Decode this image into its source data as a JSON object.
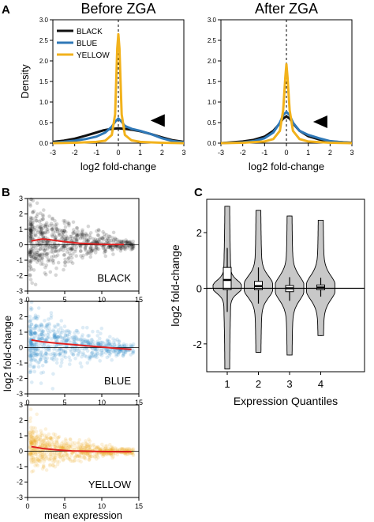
{
  "panels": {
    "a": "A",
    "b": "B",
    "c": "C"
  },
  "chart_data": [
    {
      "type": "line",
      "title": "Before ZGA",
      "xlabel": "log2 fold-change",
      "ylabel": "Density",
      "xlim": [
        -3,
        3
      ],
      "ylim": [
        0,
        3.0
      ],
      "xticks": [
        "-3",
        "-2",
        "-1",
        "0",
        "1",
        "2",
        "3"
      ],
      "yticks": [
        "0.0",
        "0.5",
        "1.0",
        "1.5",
        "2.0",
        "2.5",
        "3.0"
      ],
      "legend": {
        "position": "top-left"
      },
      "annotation": "arrowhead near x=1.8",
      "series": [
        {
          "name": "BLACK",
          "color": "#111111",
          "x": [
            -3,
            -2.5,
            -2,
            -1.5,
            -1,
            -0.7,
            -0.4,
            -0.2,
            0,
            0.2,
            0.4,
            0.7,
            1,
            1.5,
            2,
            2.5,
            3
          ],
          "y": [
            0.03,
            0.06,
            0.11,
            0.18,
            0.26,
            0.31,
            0.34,
            0.35,
            0.36,
            0.35,
            0.34,
            0.32,
            0.29,
            0.22,
            0.14,
            0.07,
            0.03
          ]
        },
        {
          "name": "BLUE",
          "color": "#2f78b7",
          "x": [
            -3,
            -2.5,
            -2,
            -1.5,
            -1,
            -0.6,
            -0.3,
            -0.15,
            0,
            0.15,
            0.3,
            0.6,
            1,
            1.5,
            2,
            2.5,
            3
          ],
          "y": [
            0.01,
            0.03,
            0.06,
            0.1,
            0.16,
            0.26,
            0.4,
            0.52,
            0.6,
            0.52,
            0.42,
            0.35,
            0.3,
            0.22,
            0.12,
            0.05,
            0.02
          ]
        },
        {
          "name": "YELLOW",
          "color": "#f2b21c",
          "x": [
            -3,
            -2,
            -1,
            -0.6,
            -0.3,
            -0.15,
            -0.05,
            0,
            0.05,
            0.15,
            0.3,
            0.6,
            1,
            1.5,
            2,
            3
          ],
          "y": [
            0.0,
            0.01,
            0.03,
            0.06,
            0.2,
            0.7,
            2.3,
            2.65,
            2.3,
            0.7,
            0.2,
            0.07,
            0.03,
            0.02,
            0.01,
            0.0
          ]
        }
      ]
    },
    {
      "type": "line",
      "title": "After ZGA",
      "xlabel": "log2 fold-change",
      "xlim": [
        -3,
        3
      ],
      "ylim": [
        0,
        3.0
      ],
      "xticks": [
        "-3",
        "-2",
        "-1",
        "0",
        "1",
        "2",
        "3"
      ],
      "yticks": [
        "0.0",
        "0.5",
        "1.0",
        "1.5",
        "2.0",
        "2.5",
        "3.0"
      ],
      "annotation": "arrowhead near x=1.6",
      "series": [
        {
          "name": "BLACK",
          "color": "#111111",
          "x": [
            -3,
            -2,
            -1.5,
            -1,
            -0.6,
            -0.3,
            -0.15,
            0,
            0.15,
            0.3,
            0.6,
            1,
            1.5,
            2,
            3
          ],
          "y": [
            0.0,
            0.04,
            0.08,
            0.16,
            0.3,
            0.48,
            0.6,
            0.65,
            0.6,
            0.48,
            0.3,
            0.17,
            0.09,
            0.04,
            0.01
          ]
        },
        {
          "name": "BLUE",
          "color": "#2f78b7",
          "x": [
            -3,
            -2,
            -1.5,
            -1,
            -0.6,
            -0.3,
            -0.15,
            0,
            0.15,
            0.3,
            0.6,
            1,
            1.5,
            2,
            3
          ],
          "y": [
            0.0,
            0.02,
            0.05,
            0.12,
            0.26,
            0.5,
            0.68,
            0.76,
            0.68,
            0.5,
            0.3,
            0.2,
            0.12,
            0.05,
            0.0
          ]
        },
        {
          "name": "YELLOW",
          "color": "#f2b21c",
          "x": [
            -3,
            -2,
            -1,
            -0.6,
            -0.3,
            -0.15,
            -0.05,
            0,
            0.05,
            0.15,
            0.3,
            0.6,
            1,
            2,
            3
          ],
          "y": [
            0.0,
            0.01,
            0.04,
            0.1,
            0.3,
            0.8,
            1.6,
            1.92,
            1.6,
            0.8,
            0.3,
            0.1,
            0.04,
            0.01,
            0.0
          ]
        }
      ]
    },
    {
      "type": "scatter",
      "label": "BLACK",
      "color": "#000000",
      "xlim": [
        0,
        15
      ],
      "ylim": [
        -3,
        3
      ],
      "xticks": [
        "0",
        "5",
        "10",
        "15"
      ],
      "yticks": [
        "-3",
        "-2",
        "-1",
        "0",
        "1",
        "2",
        "3"
      ],
      "ylabel": "log2 fold-change",
      "trend": {
        "x": [
          0.5,
          2,
          3,
          5,
          7,
          9,
          11,
          13
        ],
        "y": [
          0.25,
          0.38,
          0.33,
          0.2,
          0.1,
          0.05,
          0.02,
          0.02
        ]
      },
      "spread": {
        "x": [
          0.5,
          3,
          6,
          9,
          12,
          14
        ],
        "sd": [
          1.2,
          0.95,
          0.7,
          0.45,
          0.25,
          0.15
        ]
      }
    },
    {
      "type": "scatter",
      "label": "BLUE",
      "color": "#2b86c8",
      "xlim": [
        0,
        15
      ],
      "ylim": [
        -3,
        3
      ],
      "xticks": [
        "0",
        "5",
        "10",
        "15"
      ],
      "yticks": [
        "-3",
        "-2",
        "-1",
        "0",
        "1",
        "2",
        "3"
      ],
      "trend": {
        "x": [
          0.5,
          2,
          4,
          6,
          8,
          10,
          12,
          14
        ],
        "y": [
          0.5,
          0.38,
          0.28,
          0.2,
          0.12,
          0.04,
          -0.05,
          -0.12
        ]
      },
      "spread": {
        "x": [
          0.5,
          3,
          6,
          9,
          12,
          14
        ],
        "sd": [
          1.0,
          0.85,
          0.6,
          0.4,
          0.25,
          0.15
        ]
      }
    },
    {
      "type": "scatter",
      "label": "YELLOW",
      "color": "#eda51c",
      "xlim": [
        0,
        15
      ],
      "ylim": [
        -3,
        3
      ],
      "xticks": [
        "0",
        "5",
        "10",
        "15"
      ],
      "yticks": [
        "-3",
        "-2",
        "-1",
        "0",
        "1",
        "2",
        "3"
      ],
      "xlabel": "mean expression",
      "trend": {
        "x": [
          0.5,
          2,
          4,
          6,
          8,
          10,
          12,
          14
        ],
        "y": [
          0.3,
          0.18,
          0.08,
          0.02,
          0.0,
          -0.02,
          -0.03,
          -0.03
        ]
      },
      "spread": {
        "x": [
          0.5,
          3,
          6,
          9,
          12,
          14
        ],
        "sd": [
          0.8,
          0.5,
          0.35,
          0.25,
          0.15,
          0.1
        ]
      }
    },
    {
      "type": "violin",
      "xlabel": "Expression Quantiles",
      "ylabel": "log2 fold-change",
      "categories": [
        "1",
        "2",
        "3",
        "4"
      ],
      "ylim": [
        -3,
        3.2
      ],
      "yticks": [
        "-2",
        "0",
        "2"
      ],
      "distributions": [
        {
          "min": -2.9,
          "max": 2.95,
          "q1": -0.05,
          "median": 0.3,
          "q3": 0.75,
          "whisker_low": -0.85,
          "whisker_high": 1.45,
          "peak": 0.05,
          "peak_halfwidth": 0.22
        },
        {
          "min": -2.3,
          "max": 2.8,
          "q1": -0.05,
          "median": 0.08,
          "q3": 0.25,
          "whisker_low": -0.55,
          "whisker_high": 0.75,
          "peak": 0.05,
          "peak_halfwidth": 0.36
        },
        {
          "min": -2.4,
          "max": 2.6,
          "q1": -0.12,
          "median": 0.0,
          "q3": 0.1,
          "whisker_low": -0.45,
          "whisker_high": 0.4,
          "peak": 0.0,
          "peak_halfwidth": 0.4
        },
        {
          "min": -1.7,
          "max": 2.45,
          "q1": -0.05,
          "median": 0.03,
          "q3": 0.12,
          "whisker_low": -0.3,
          "whisker_high": 0.38,
          "peak": 0.02,
          "peak_halfwidth": 0.4
        }
      ]
    }
  ]
}
